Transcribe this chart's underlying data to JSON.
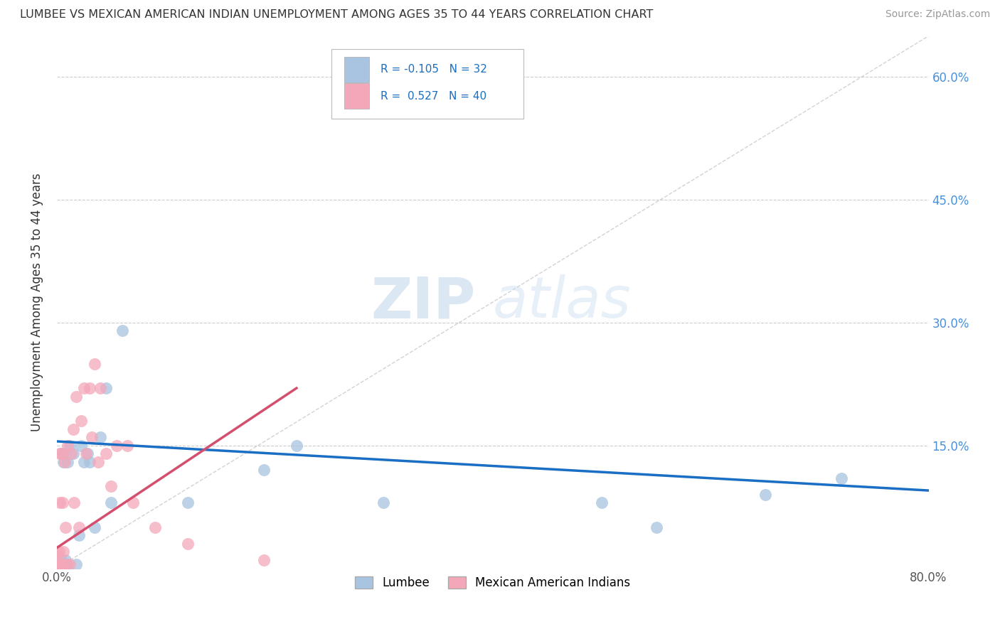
{
  "title": "LUMBEE VS MEXICAN AMERICAN INDIAN UNEMPLOYMENT AMONG AGES 35 TO 44 YEARS CORRELATION CHART",
  "source": "Source: ZipAtlas.com",
  "ylabel": "Unemployment Among Ages 35 to 44 years",
  "xlim": [
    0.0,
    0.8
  ],
  "ylim": [
    0.0,
    0.65
  ],
  "lumbee_R": -0.105,
  "lumbee_N": 32,
  "mexican_R": 0.527,
  "mexican_N": 40,
  "lumbee_color": "#a8c4e0",
  "mexican_color": "#f4a7b9",
  "lumbee_line_color": "#1a6fc4",
  "mexican_line_color": "#d44f6e",
  "diagonal_color": "#c0c0c0",
  "watermark_zip": "ZIP",
  "watermark_atlas": "atlas",
  "lumbee_x": [
    0.002,
    0.003,
    0.004,
    0.004,
    0.005,
    0.006,
    0.007,
    0.008,
    0.009,
    0.01,
    0.01,
    0.012,
    0.015,
    0.018,
    0.02,
    0.022,
    0.025,
    0.028,
    0.03,
    0.035,
    0.04,
    0.045,
    0.05,
    0.06,
    0.12,
    0.19,
    0.22,
    0.3,
    0.5,
    0.55,
    0.65,
    0.72
  ],
  "lumbee_y": [
    0.005,
    0.005,
    0.01,
    0.005,
    0.14,
    0.13,
    0.005,
    0.01,
    0.005,
    0.005,
    0.13,
    0.15,
    0.14,
    0.005,
    0.04,
    0.15,
    0.13,
    0.14,
    0.13,
    0.05,
    0.16,
    0.22,
    0.08,
    0.29,
    0.08,
    0.12,
    0.15,
    0.08,
    0.08,
    0.05,
    0.09,
    0.11
  ],
  "mexican_x": [
    0.0,
    0.0,
    0.001,
    0.001,
    0.002,
    0.002,
    0.003,
    0.003,
    0.003,
    0.004,
    0.004,
    0.005,
    0.005,
    0.006,
    0.007,
    0.008,
    0.009,
    0.01,
    0.012,
    0.013,
    0.015,
    0.016,
    0.018,
    0.02,
    0.022,
    0.025,
    0.027,
    0.03,
    0.032,
    0.035,
    0.038,
    0.04,
    0.045,
    0.05,
    0.055,
    0.065,
    0.07,
    0.09,
    0.12,
    0.19
  ],
  "mexican_y": [
    0.005,
    0.02,
    0.005,
    0.015,
    0.005,
    0.02,
    0.005,
    0.08,
    0.14,
    0.005,
    0.14,
    0.005,
    0.08,
    0.02,
    0.13,
    0.05,
    0.005,
    0.15,
    0.005,
    0.14,
    0.17,
    0.08,
    0.21,
    0.05,
    0.18,
    0.22,
    0.14,
    0.22,
    0.16,
    0.25,
    0.13,
    0.22,
    0.14,
    0.1,
    0.15,
    0.15,
    0.08,
    0.05,
    0.03,
    0.01
  ],
  "lumbee_line_x0": 0.0,
  "lumbee_line_y0": 0.155,
  "lumbee_line_x1": 0.8,
  "lumbee_line_y1": 0.095,
  "mexican_line_x0": 0.0,
  "mexican_line_y0": 0.025,
  "mexican_line_x1": 0.22,
  "mexican_line_y1": 0.22
}
